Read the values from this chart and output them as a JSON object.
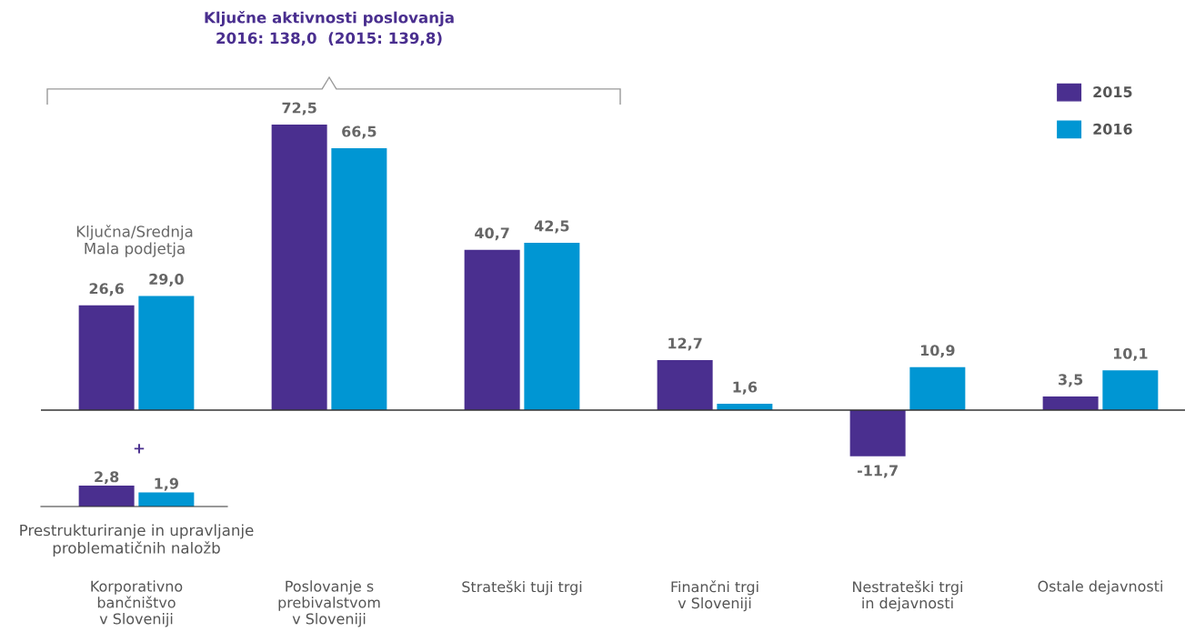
{
  "chart_data": [
    {
      "type": "bar",
      "title": "Ključne aktivnosti poslovanja\n2016: 138,0  (2015: 139,8)",
      "categories": [
        "Korporativno\nbančništvo\nv Sloveniji",
        "Poslovanje s\nprebivalstvom\nv Sloveniji",
        "Strateški tuji trgi",
        "Finančni trgi\nv Sloveniji",
        "Nestrateški trgi\nin dejavnosti",
        "Ostale dejavnosti"
      ],
      "series": [
        {
          "name": "2015",
          "color": "#4a2f8f",
          "values": [
            26.6,
            72.5,
            40.7,
            12.7,
            -11.7,
            3.5
          ],
          "value_labels": [
            "26,6",
            "72,5",
            "40,7",
            "12,7",
            "-11,7",
            "3,5"
          ]
        },
        {
          "name": "2016",
          "color": "#0096d3",
          "values": [
            29.0,
            66.5,
            42.5,
            1.6,
            10.9,
            10.1
          ],
          "value_labels": [
            "29,0",
            "66,5",
            "42,5",
            "1,6",
            "10,9",
            "10,1"
          ]
        }
      ],
      "annotations": [
        "Ključna/Srednja\nMala podjetja"
      ],
      "legend": "top right",
      "grid": false
    },
    {
      "type": "bar",
      "categories": [
        "Prestrukturiranje in upravljanje\nproblematičnih naložb"
      ],
      "series": [
        {
          "color": "#4a2f8f",
          "values": [
            2.8
          ],
          "value_labels": [
            "2,8"
          ]
        },
        {
          "color": "#0096d3",
          "values": [
            1.9
          ],
          "value_labels": [
            "1,9"
          ]
        }
      ],
      "annotations": [
        "+"
      ],
      "legend": false,
      "grid": false
    }
  ]
}
